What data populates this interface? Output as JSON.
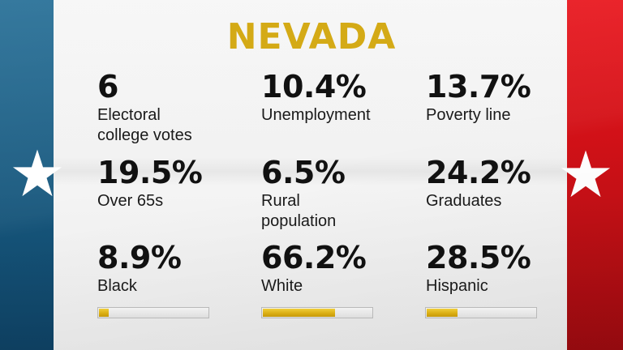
{
  "title": "NEVADA",
  "colors": {
    "title": "#d4aa16",
    "left_band": "#17587e",
    "right_band": "#c81016",
    "bar_fill": "#d9ac12"
  },
  "icons": [
    "white-star-icon-left",
    "white-star-icon-right"
  ],
  "stats": [
    {
      "value": "6",
      "label_lines": [
        "Electoral",
        "college votes"
      ]
    },
    {
      "value": "10.4%",
      "label_lines": [
        "Unemployment"
      ]
    },
    {
      "value": "13.7%",
      "label_lines": [
        "Poverty line"
      ]
    },
    {
      "value": "19.5%",
      "label_lines": [
        "Over 65s"
      ]
    },
    {
      "value": "6.5%",
      "label_lines": [
        "Rural",
        "population"
      ]
    },
    {
      "value": "24.2%",
      "label_lines": [
        "Graduates"
      ]
    },
    {
      "value": "8.9%",
      "label_lines": [
        "Black"
      ]
    },
    {
      "value": "66.2%",
      "label_lines": [
        "White"
      ]
    },
    {
      "value": "28.5%",
      "label_lines": [
        "Hispanic"
      ]
    }
  ],
  "bars": [
    {
      "name": "Black",
      "percent": 8.9
    },
    {
      "name": "White",
      "percent": 66.2
    },
    {
      "name": "Hispanic",
      "percent": 28.5
    }
  ]
}
